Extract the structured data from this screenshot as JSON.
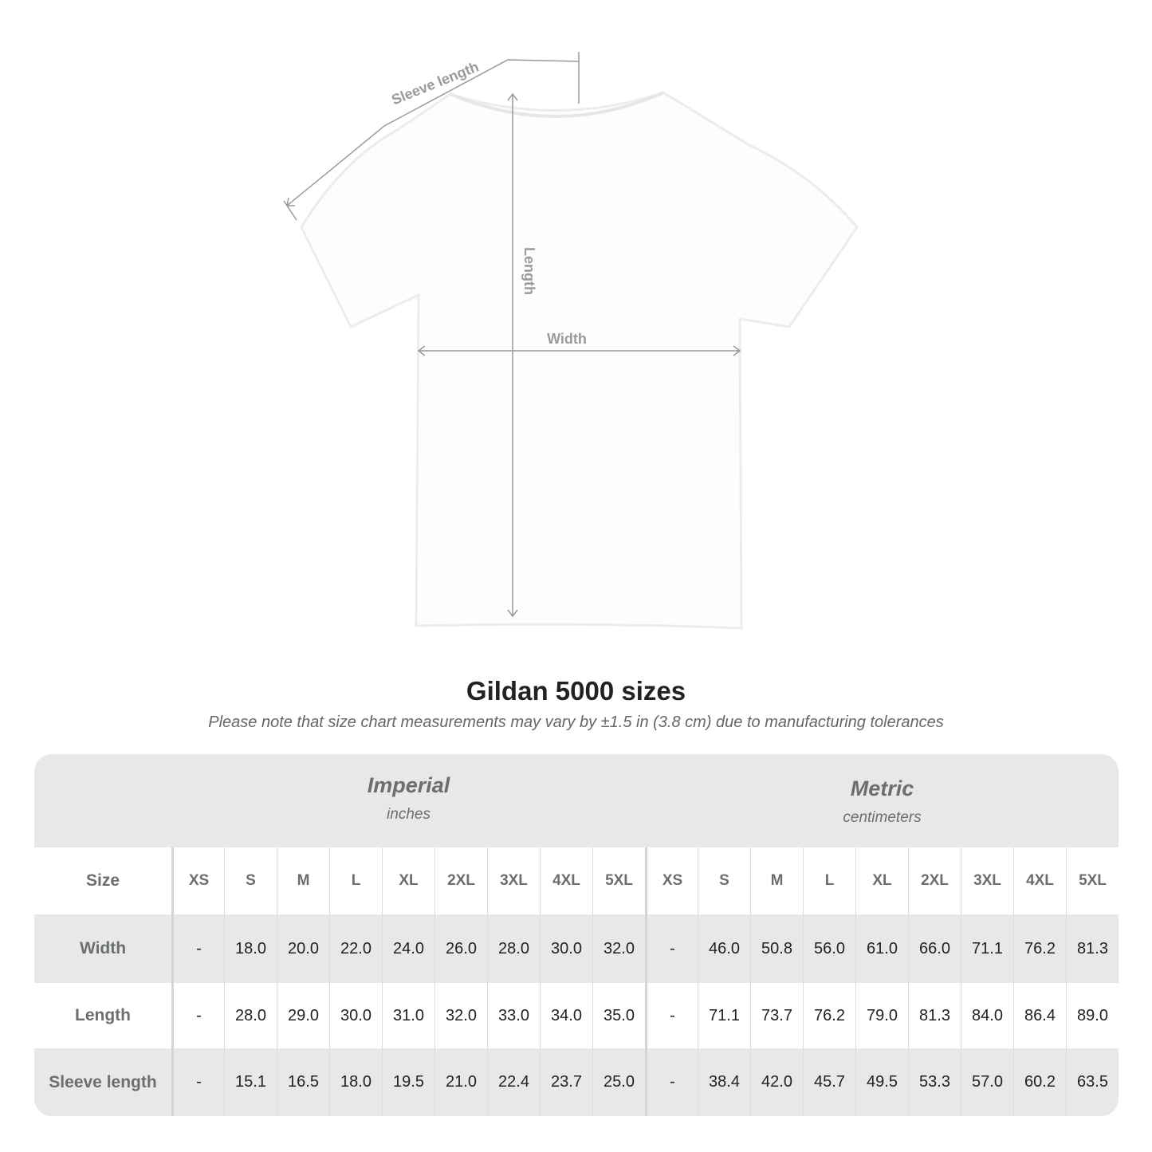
{
  "diagram": {
    "labels": {
      "sleeve": "Sleeve length",
      "length": "Length",
      "width": "Width"
    },
    "line_color": "#9a9a9a"
  },
  "title": "Gildan 5000 sizes",
  "subtitle": "Please note that size chart measurements may vary by ±1.5 in (3.8 cm) due to manufacturing tolerances",
  "table": {
    "imperial": {
      "label": "Imperial",
      "unit": "inches"
    },
    "metric": {
      "label": "Metric",
      "unit": "centimeters"
    },
    "size_label": "Size",
    "sizes": [
      "XS",
      "S",
      "M",
      "L",
      "XL",
      "2XL",
      "3XL",
      "4XL",
      "5XL"
    ],
    "rows": [
      {
        "label": "Width",
        "imperial": [
          "-",
          "18.0",
          "20.0",
          "22.0",
          "24.0",
          "26.0",
          "28.0",
          "30.0",
          "32.0"
        ],
        "metric": [
          "-",
          "46.0",
          "50.8",
          "56.0",
          "61.0",
          "66.0",
          "71.1",
          "76.2",
          "81.3"
        ]
      },
      {
        "label": "Length",
        "imperial": [
          "-",
          "28.0",
          "29.0",
          "30.0",
          "31.0",
          "32.0",
          "33.0",
          "34.0",
          "35.0"
        ],
        "metric": [
          "-",
          "71.1",
          "73.7",
          "76.2",
          "79.0",
          "81.3",
          "84.0",
          "86.4",
          "89.0"
        ]
      },
      {
        "label": "Sleeve length",
        "imperial": [
          "-",
          "15.1",
          "16.5",
          "18.0",
          "19.5",
          "21.0",
          "22.4",
          "23.7",
          "25.0"
        ],
        "metric": [
          "-",
          "38.4",
          "42.0",
          "45.7",
          "49.5",
          "53.3",
          "57.0",
          "60.2",
          "63.5"
        ]
      }
    ],
    "colors": {
      "band": "#e8e8e8",
      "header_text": "#6b6e70"
    }
  }
}
